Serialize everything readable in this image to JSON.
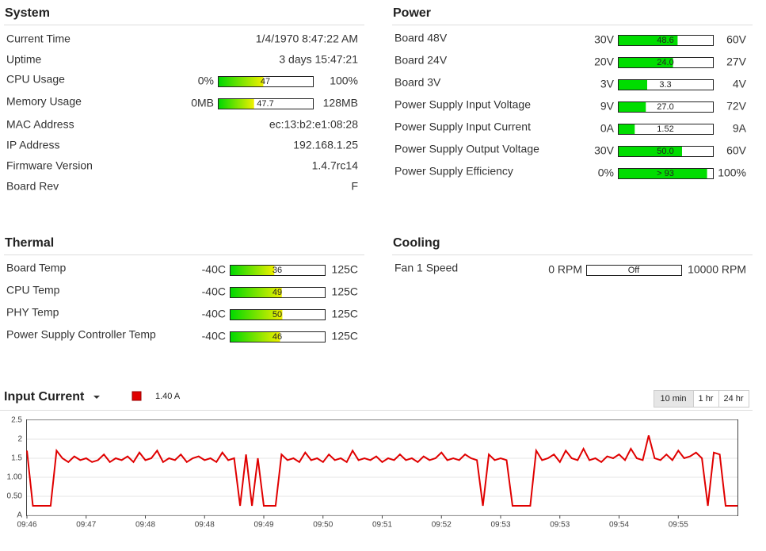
{
  "sections": [
    {
      "title": "System",
      "bar_style": "gradient",
      "rows": [
        {
          "label": "Current Time",
          "text": "1/4/1970 8:47:22 AM"
        },
        {
          "label": "Uptime",
          "text": "3 days 15:47:21"
        },
        {
          "label": "CPU Usage",
          "gauge": {
            "min": {
              "value": 0,
              "label": "0%"
            },
            "max": {
              "value": 100,
              "label": "100%"
            },
            "value": 47
          }
        },
        {
          "label": "Memory Usage",
          "gauge": {
            "min": {
              "value": 0,
              "label": "0MB"
            },
            "max": {
              "value": 128,
              "label": "128MB"
            },
            "value": 47.7
          }
        },
        {
          "label": "MAC Address",
          "text": "ec:13:b2:e1:08:28"
        },
        {
          "label": "IP Address",
          "text": "192.168.1.25"
        },
        {
          "label": "Firmware Version",
          "text": "1.4.7rc14"
        },
        {
          "label": "Board Rev",
          "text": "F"
        }
      ]
    },
    {
      "title": "Power",
      "bar_style": "solid",
      "rows": [
        {
          "label": "Board 48V",
          "gauge": {
            "min": {
              "value": 30,
              "label": "30V"
            },
            "max": {
              "value": 60,
              "label": "60V"
            },
            "value": 48.6
          }
        },
        {
          "label": "Board 24V",
          "gauge": {
            "min": {
              "value": 20,
              "label": "20V"
            },
            "max": {
              "value": 27,
              "label": "27V"
            },
            "value": 24.0,
            "value_label": "24.0"
          }
        },
        {
          "label": "Board 3V",
          "gauge": {
            "min": {
              "value": 3,
              "label": "3V"
            },
            "max": {
              "value": 4,
              "label": "4V"
            },
            "value": 3.3
          }
        },
        {
          "label": "Power Supply Input Voltage",
          "gauge": {
            "min": {
              "value": 9,
              "label": "9V"
            },
            "max": {
              "value": 72,
              "label": "72V"
            },
            "value": 27.0,
            "value_label": "27.0"
          }
        },
        {
          "label": "Power Supply Input Current",
          "gauge": {
            "min": {
              "value": 0,
              "label": "0A"
            },
            "max": {
              "value": 9,
              "label": "9A"
            },
            "value": 1.52
          }
        },
        {
          "label": "Power Supply Output Voltage",
          "gauge": {
            "min": {
              "value": 30,
              "label": "30V"
            },
            "max": {
              "value": 60,
              "label": "60V"
            },
            "value": 50.0,
            "value_label": "50.0"
          }
        },
        {
          "label": "Power Supply Efficiency",
          "gauge": {
            "min": {
              "value": 0,
              "label": "0%"
            },
            "max": {
              "value": 100,
              "label": "100%"
            },
            "value": 93,
            "value_label": "> 93"
          }
        }
      ]
    },
    {
      "title": "Thermal",
      "bar_style": "gradient",
      "rows": [
        {
          "label": "Board Temp",
          "gauge": {
            "min": {
              "value": -40,
              "label": "-40C"
            },
            "max": {
              "value": 125,
              "label": "125C"
            },
            "value": 36
          }
        },
        {
          "label": "CPU Temp",
          "gauge": {
            "min": {
              "value": -40,
              "label": "-40C"
            },
            "max": {
              "value": 125,
              "label": "125C"
            },
            "value": 49
          }
        },
        {
          "label": "PHY Temp",
          "gauge": {
            "min": {
              "value": -40,
              "label": "-40C"
            },
            "max": {
              "value": 125,
              "label": "125C"
            },
            "value": 50
          }
        },
        {
          "label": "Power Supply Controller Temp",
          "gauge": {
            "min": {
              "value": -40,
              "label": "-40C"
            },
            "max": {
              "value": 125,
              "label": "125C"
            },
            "value": 46
          }
        }
      ]
    },
    {
      "title": "Cooling",
      "bar_style": "solid",
      "rows": [
        {
          "label": "Fan 1 Speed",
          "gauge": {
            "min": {
              "value": 0,
              "label": "0 RPM"
            },
            "max": {
              "value": 10000,
              "label": "10000 RPM"
            },
            "value": 0,
            "value_label": "Off"
          }
        }
      ]
    }
  ],
  "chart_data": {
    "type": "line",
    "title": "Input Current",
    "buttons": [
      "10 min",
      "1 hr",
      "24 hr"
    ],
    "series": [
      {
        "name": "1.40 A",
        "color": "#e00000",
        "values": [
          1.7,
          0.25,
          0.25,
          0.25,
          0.25,
          1.7,
          1.5,
          1.4,
          1.55,
          1.45,
          1.5,
          1.4,
          1.45,
          1.6,
          1.4,
          1.5,
          1.45,
          1.55,
          1.4,
          1.65,
          1.45,
          1.5,
          1.7,
          1.4,
          1.5,
          1.45,
          1.6,
          1.4,
          1.5,
          1.55,
          1.45,
          1.5,
          1.4,
          1.65,
          1.45,
          1.5,
          0.25,
          1.6,
          0.25,
          1.5,
          0.25,
          0.25,
          0.25,
          1.6,
          1.45,
          1.5,
          1.4,
          1.65,
          1.45,
          1.5,
          1.4,
          1.6,
          1.45,
          1.5,
          1.4,
          1.7,
          1.45,
          1.5,
          1.45,
          1.55,
          1.4,
          1.5,
          1.45,
          1.6,
          1.45,
          1.5,
          1.4,
          1.55,
          1.45,
          1.5,
          1.65,
          1.45,
          1.5,
          1.45,
          1.6,
          1.5,
          1.45,
          0.25,
          1.6,
          1.45,
          1.5,
          1.45,
          0.25,
          0.25,
          0.25,
          0.25,
          1.7,
          1.45,
          1.5,
          1.6,
          1.4,
          1.7,
          1.5,
          1.45,
          1.75,
          1.45,
          1.5,
          1.4,
          1.55,
          1.5,
          1.6,
          1.45,
          1.75,
          1.5,
          1.45,
          2.1,
          1.5,
          1.45,
          1.6,
          1.45,
          1.7,
          1.5,
          1.55,
          1.65,
          1.5,
          0.25,
          1.65,
          1.6,
          0.25,
          0.25,
          0.25
        ]
      }
    ],
    "xlim": [
      0,
      120
    ],
    "xticks": [
      {
        "value": 0,
        "label": "09:46"
      },
      {
        "value": 10,
        "label": "09:47"
      },
      {
        "value": 20,
        "label": "09:48"
      },
      {
        "value": 30,
        "label": "09:48"
      },
      {
        "value": 40,
        "label": "09:49"
      },
      {
        "value": 50,
        "label": "09:50"
      },
      {
        "value": 60,
        "label": "09:51"
      },
      {
        "value": 70,
        "label": "09:52"
      },
      {
        "value": 80,
        "label": "09:53"
      },
      {
        "value": 90,
        "label": "09:53"
      },
      {
        "value": 100,
        "label": "09:54"
      },
      {
        "value": 110,
        "label": "09:55"
      }
    ],
    "ylim": [
      0,
      2.5
    ],
    "yticks": [
      {
        "value": 0,
        "label": "A"
      },
      {
        "value": 0.5,
        "label": "0.50"
      },
      {
        "value": 1,
        "label": "1.00"
      },
      1.5,
      2,
      2.5
    ],
    "grid": true
  }
}
